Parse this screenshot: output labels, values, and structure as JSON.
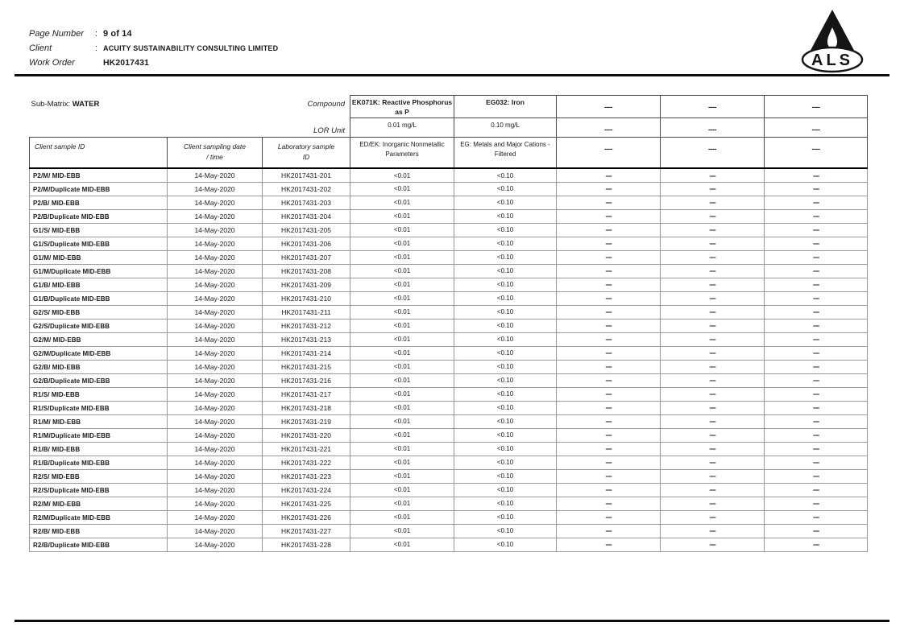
{
  "header": {
    "fields": [
      {
        "label": "Page Number",
        "colon": ":",
        "value": "9 of 14"
      },
      {
        "label": "Client",
        "colon": ":",
        "value": "ACUITY SUSTAINABILITY CONSULTING LIMITED"
      },
      {
        "label": "Work Order",
        "colon": "",
        "value": "HK2017431"
      }
    ],
    "logo_text": "ALS"
  },
  "table": {
    "sub_matrix_label": "Sub-Matrix:",
    "sub_matrix_value": "WATER",
    "compound_label": "Compound",
    "lor_label": "LOR Unit",
    "col_sample_id": "Client sample ID",
    "col_date_l1": "Client sampling date",
    "col_date_l2": "/ time",
    "col_lab_l1": "Laboratory sample",
    "col_lab_l2": "ID",
    "compounds": [
      {
        "name": "EK071K: Reactive Phosphorus as P",
        "lor": "0.01 mg/L",
        "method": "ED/EK: Inorganic Nonmetallic Parameters"
      },
      {
        "name": "EG032: Iron",
        "lor": "0.10 mg/L",
        "method": "EG: Metals and Major Cations - Filtered"
      },
      {
        "name": "----",
        "lor": "----",
        "method": "----"
      },
      {
        "name": "----",
        "lor": "----",
        "method": "----"
      },
      {
        "name": "----",
        "lor": "----",
        "method": "----"
      }
    ],
    "rows": [
      [
        "P2/M/ MID-EBB",
        "14-May-2020",
        "HK2017431-201",
        "<0.01",
        "<0.10",
        "----",
        "----",
        "----"
      ],
      [
        "P2/M/Duplicate MID-EBB",
        "14-May-2020",
        "HK2017431-202",
        "<0.01",
        "<0.10",
        "----",
        "----",
        "----"
      ],
      [
        "P2/B/ MID-EBB",
        "14-May-2020",
        "HK2017431-203",
        "<0.01",
        "<0.10",
        "----",
        "----",
        "----"
      ],
      [
        "P2/B/Duplicate MID-EBB",
        "14-May-2020",
        "HK2017431-204",
        "<0.01",
        "<0.10",
        "----",
        "----",
        "----"
      ],
      [
        "G1/S/ MID-EBB",
        "14-May-2020",
        "HK2017431-205",
        "<0.01",
        "<0.10",
        "----",
        "----",
        "----"
      ],
      [
        "G1/S/Duplicate MID-EBB",
        "14-May-2020",
        "HK2017431-206",
        "<0.01",
        "<0.10",
        "----",
        "----",
        "----"
      ],
      [
        "G1/M/ MID-EBB",
        "14-May-2020",
        "HK2017431-207",
        "<0.01",
        "<0.10",
        "----",
        "----",
        "----"
      ],
      [
        "G1/M/Duplicate MID-EBB",
        "14-May-2020",
        "HK2017431-208",
        "<0.01",
        "<0.10",
        "----",
        "----",
        "----"
      ],
      [
        "G1/B/ MID-EBB",
        "14-May-2020",
        "HK2017431-209",
        "<0.01",
        "<0.10",
        "----",
        "----",
        "----"
      ],
      [
        "G1/B/Duplicate MID-EBB",
        "14-May-2020",
        "HK2017431-210",
        "<0.01",
        "<0.10",
        "----",
        "----",
        "----"
      ],
      [
        "G2/S/ MID-EBB",
        "14-May-2020",
        "HK2017431-211",
        "<0.01",
        "<0.10",
        "----",
        "----",
        "----"
      ],
      [
        "G2/S/Duplicate MID-EBB",
        "14-May-2020",
        "HK2017431-212",
        "<0.01",
        "<0.10",
        "----",
        "----",
        "----"
      ],
      [
        "G2/M/ MID-EBB",
        "14-May-2020",
        "HK2017431-213",
        "<0.01",
        "<0.10",
        "----",
        "----",
        "----"
      ],
      [
        "G2/M/Duplicate MID-EBB",
        "14-May-2020",
        "HK2017431-214",
        "<0.01",
        "<0.10",
        "----",
        "----",
        "----"
      ],
      [
        "G2/B/ MID-EBB",
        "14-May-2020",
        "HK2017431-215",
        "<0.01",
        "<0.10",
        "----",
        "----",
        "----"
      ],
      [
        "G2/B/Duplicate MID-EBB",
        "14-May-2020",
        "HK2017431-216",
        "<0.01",
        "<0.10",
        "----",
        "----",
        "----"
      ],
      [
        "R1/S/ MID-EBB",
        "14-May-2020",
        "HK2017431-217",
        "<0.01",
        "<0.10",
        "----",
        "----",
        "----"
      ],
      [
        "R1/S/Duplicate MID-EBB",
        "14-May-2020",
        "HK2017431-218",
        "<0.01",
        "<0.10",
        "----",
        "----",
        "----"
      ],
      [
        "R1/M/ MID-EBB",
        "14-May-2020",
        "HK2017431-219",
        "<0.01",
        "<0.10",
        "----",
        "----",
        "----"
      ],
      [
        "R1/M/Duplicate MID-EBB",
        "14-May-2020",
        "HK2017431-220",
        "<0.01",
        "<0.10",
        "----",
        "----",
        "----"
      ],
      [
        "R1/B/ MID-EBB",
        "14-May-2020",
        "HK2017431-221",
        "<0.01",
        "<0.10",
        "----",
        "----",
        "----"
      ],
      [
        "R1/B/Duplicate MID-EBB",
        "14-May-2020",
        "HK2017431-222",
        "<0.01",
        "<0.10",
        "----",
        "----",
        "----"
      ],
      [
        "R2/S/ MID-EBB",
        "14-May-2020",
        "HK2017431-223",
        "<0.01",
        "<0.10",
        "----",
        "----",
        "----"
      ],
      [
        "R2/S/Duplicate MID-EBB",
        "14-May-2020",
        "HK2017431-224",
        "<0.01",
        "<0.10",
        "----",
        "----",
        "----"
      ],
      [
        "R2/M/ MID-EBB",
        "14-May-2020",
        "HK2017431-225",
        "<0.01",
        "<0.10",
        "----",
        "----",
        "----"
      ],
      [
        "R2/M/Duplicate MID-EBB",
        "14-May-2020",
        "HK2017431-226",
        "<0.01",
        "<0.10",
        "----",
        "----",
        "----"
      ],
      [
        "R2/B/ MID-EBB",
        "14-May-2020",
        "HK2017431-227",
        "<0.01",
        "<0.10",
        "----",
        "----",
        "----"
      ],
      [
        "R2/B/Duplicate MID-EBB",
        "14-May-2020",
        "HK2017431-228",
        "<0.01",
        "<0.10",
        "----",
        "----",
        "----"
      ]
    ]
  }
}
